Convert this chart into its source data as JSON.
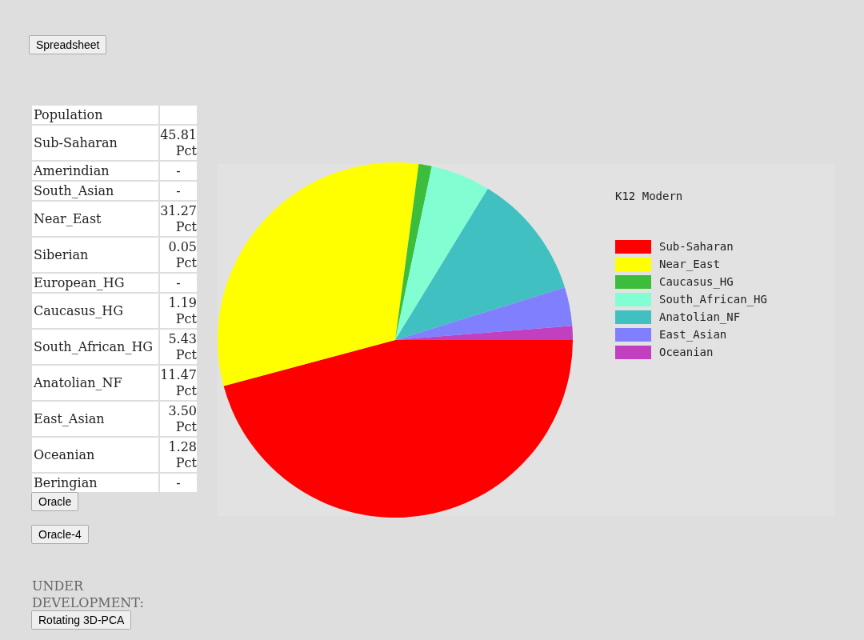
{
  "chart_data": [
    {
      "type": "other",
      "title": "Population",
      "categories": [
        "Sub-Saharan",
        "Amerindian",
        "South_Asian",
        "Near_East",
        "Siberian",
        "European_HG",
        "Caucasus_HG",
        "South_African_HG",
        "Anatolian_NF",
        "East_Asian",
        "Oceanian",
        "Beringian"
      ],
      "annotations": [
        "45.81 Pct",
        "-",
        "-",
        "31.27 Pct",
        "0.05 Pct",
        "-",
        "1.19 Pct",
        "5.43 Pct",
        "11.47 Pct",
        "3.50 Pct",
        "1.28 Pct",
        "-"
      ]
    },
    {
      "type": "pie",
      "legend_title": "K12 Modern",
      "categories": [
        "Sub-Saharan",
        "Near_East",
        "Caucasus_HG",
        "South_African_HG",
        "Anatolian_NF",
        "East_Asian",
        "Oceanian"
      ],
      "values": [
        45.81,
        31.27,
        1.19,
        5.43,
        11.47,
        3.5,
        1.28
      ],
      "colors": [
        "#ff0000",
        "#ffff00",
        "#3cbe3c",
        "#82ffd2",
        "#40c0c0",
        "#8080ff",
        "#c040c0"
      ],
      "legend": "top right",
      "annotations": [
        "Spreadsheet",
        "Oracle",
        "Oracle-4",
        "UNDER DEVELOPMENT:",
        "Rotating 3D-PCA"
      ]
    }
  ]
}
